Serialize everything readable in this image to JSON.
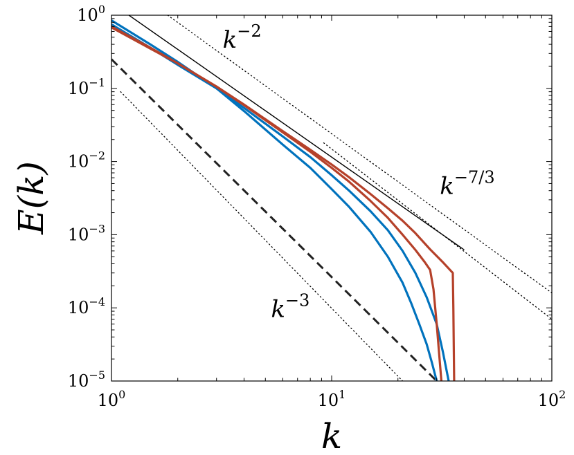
{
  "chart_data": {
    "type": "line",
    "xlabel": "k",
    "ylabel": "E(k)",
    "xscale": "log",
    "yscale": "log",
    "xlim": [
      1,
      100
    ],
    "ylim": [
      1e-05,
      1
    ],
    "grid": false,
    "legend": "none",
    "x_ticks": [
      {
        "base": "10",
        "exp": "0",
        "value": 1
      },
      {
        "base": "10",
        "exp": "1",
        "value": 10
      },
      {
        "base": "10",
        "exp": "2",
        "value": 100
      }
    ],
    "y_ticks": [
      {
        "base": "10",
        "exp": "0",
        "value": 1
      },
      {
        "base": "10",
        "exp": "−1",
        "value": 0.1
      },
      {
        "base": "10",
        "exp": "−2",
        "value": 0.01
      },
      {
        "base": "10",
        "exp": "−3",
        "value": 0.001
      },
      {
        "base": "10",
        "exp": "−4",
        "value": 0.0001
      },
      {
        "base": "10",
        "exp": "−5",
        "value": 1e-05
      }
    ],
    "annotations": [
      {
        "base": "k",
        "exp": "−2",
        "x": 3.2,
        "y": 0.36
      },
      {
        "base": "k",
        "exp": "−7/3",
        "x": 31,
        "y": 0.0036
      },
      {
        "base": "k",
        "exp": "−3",
        "x": 5.3,
        "y": 7.5e-05
      }
    ],
    "reference_lines": [
      {
        "style": "solid-thin",
        "color": "#000000",
        "x": [
          1.2,
          40
        ],
        "y": [
          1.0,
          0.00062
        ]
      },
      {
        "style": "dotted",
        "color": "#000000",
        "x": [
          1.8,
          100
        ],
        "y": [
          1.0,
          0.00016
        ]
      },
      {
        "style": "dotted",
        "color": "#000000",
        "x": [
          9.2,
          100
        ],
        "y": [
          0.018,
          7e-05
        ]
      },
      {
        "style": "dashed",
        "color": "#222222",
        "x": [
          1.0,
          30
        ],
        "y": [
          0.25,
          1e-05
        ]
      },
      {
        "style": "dotted",
        "color": "#000000",
        "x": [
          1.1,
          21
        ],
        "y": [
          0.09,
          1e-05
        ]
      }
    ],
    "series": [
      {
        "color": "#0072bd",
        "x": [
          1.0,
          1.5,
          2.0,
          3.0,
          4.0,
          6.0,
          8.0,
          10.0,
          12.0,
          15.0,
          18.0,
          21.0,
          24.0,
          27.0,
          30.0,
          32.0,
          34.0
        ],
        "y": [
          0.75,
          0.36,
          0.21,
          0.1,
          0.054,
          0.022,
          0.0115,
          0.0065,
          0.004,
          0.0021,
          0.00115,
          0.0006,
          0.0003,
          0.00014,
          6e-05,
          2.5e-05,
          1e-05
        ]
      },
      {
        "color": "#0072bd",
        "x": [
          1.0,
          1.5,
          2.0,
          3.0,
          4.0,
          6.0,
          8.0,
          10.0,
          12.0,
          15.0,
          18.0,
          21.0,
          23.0,
          25.0,
          27.0,
          28.5,
          30.0
        ],
        "y": [
          0.85,
          0.4,
          0.23,
          0.1,
          0.049,
          0.017,
          0.0082,
          0.0042,
          0.0024,
          0.0011,
          0.0005,
          0.00022,
          0.000115,
          6e-05,
          3.2e-05,
          1.8e-05,
          1e-05
        ]
      },
      {
        "color": "#b5412a",
        "x": [
          1.0,
          1.5,
          2.0,
          3.0,
          4.0,
          6.0,
          8.0,
          10.0,
          12.0,
          15.0,
          18.0,
          21.0,
          24.0,
          26.5,
          28.0,
          29.0,
          30.0,
          31.5
        ],
        "y": [
          0.7,
          0.36,
          0.22,
          0.105,
          0.059,
          0.025,
          0.0136,
          0.0082,
          0.0053,
          0.0029,
          0.0017,
          0.001,
          0.00062,
          0.00042,
          0.00033,
          0.00018,
          6e-05,
          1e-05
        ]
      },
      {
        "color": "#b5412a",
        "x": [
          1.0,
          1.5,
          2.0,
          3.0,
          4.0,
          6.0,
          8.0,
          10.0,
          12.0,
          15.0,
          18.0,
          21.0,
          24.0,
          28.0,
          32.0,
          35.5,
          35.7,
          36.0
        ],
        "y": [
          0.68,
          0.35,
          0.22,
          0.106,
          0.06,
          0.026,
          0.0145,
          0.0091,
          0.0061,
          0.0036,
          0.0023,
          0.00155,
          0.00105,
          0.00063,
          0.00042,
          0.0003,
          0.0001,
          1e-05
        ]
      }
    ]
  }
}
